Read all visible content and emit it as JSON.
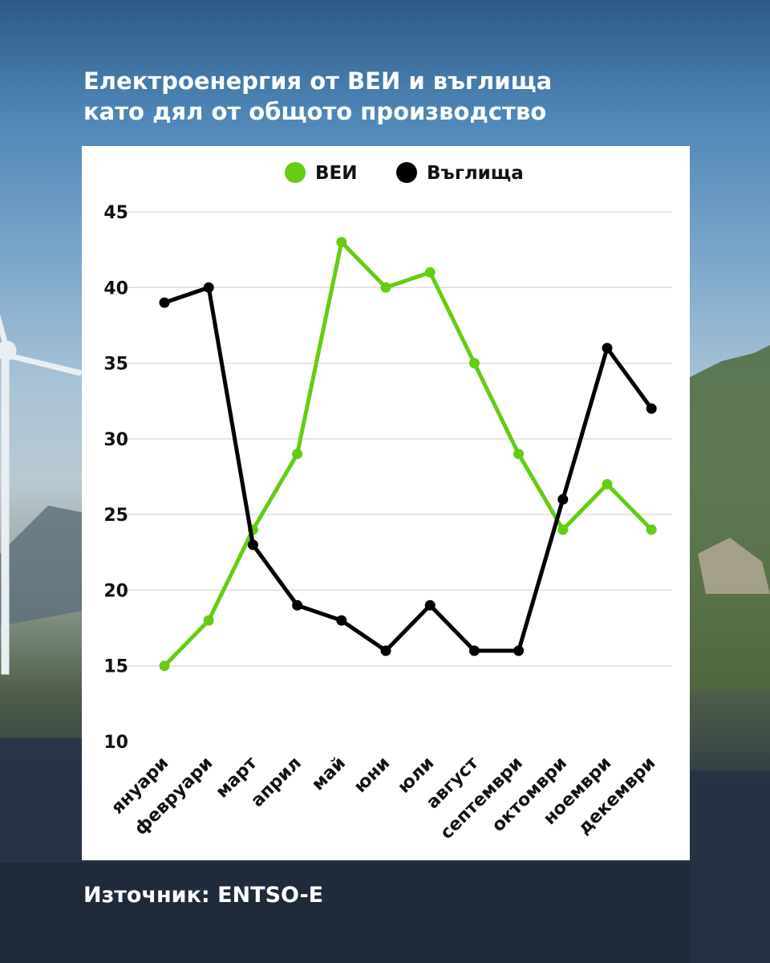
{
  "title_line1": "Електроенергия от ВЕИ и въглища",
  "title_line2": "като дял от общото производство",
  "source": "Източник: ENTSO-E",
  "colors": {
    "renewables": "#66cc11",
    "coal": "#000000",
    "grid": "#dddddd",
    "text": "#111111"
  },
  "chart_data": {
    "type": "line",
    "title": "Електроенергия от ВЕИ и въглища като дял от общото производство",
    "xlabel": "",
    "ylabel": "",
    "ylim": [
      10,
      45
    ],
    "yticks": [
      45,
      40,
      35,
      30,
      25,
      20,
      15,
      10
    ],
    "grid": true,
    "legend_position": "top-center",
    "categories": [
      "януари",
      "февруари",
      "март",
      "април",
      "май",
      "юни",
      "юли",
      "август",
      "септември",
      "октомври",
      "ноември",
      "декември"
    ],
    "series": [
      {
        "name": "ВЕИ",
        "color": "#66cc11",
        "values": [
          15,
          18,
          24,
          29,
          43,
          40,
          41,
          35,
          29,
          24,
          27,
          24
        ]
      },
      {
        "name": "Въглища",
        "color": "#000000",
        "values": [
          39,
          40,
          23,
          19,
          18,
          16,
          19,
          16,
          16,
          26,
          36,
          32
        ]
      }
    ]
  }
}
